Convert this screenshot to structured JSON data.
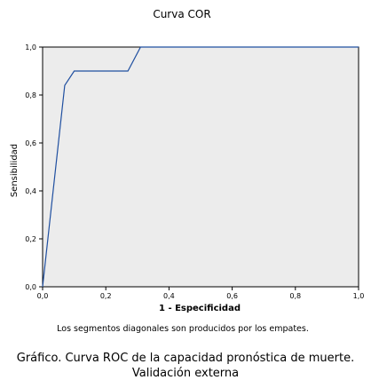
{
  "chart_data": {
    "type": "line",
    "title": "Curva COR",
    "xlabel": "1 - Especificidad",
    "ylabel": "Sensibilidad",
    "xlim": [
      0.0,
      1.0
    ],
    "ylim": [
      0.0,
      1.0
    ],
    "xticks": [
      0.0,
      0.2,
      0.4,
      0.6,
      0.8,
      1.0
    ],
    "yticks": [
      0.0,
      0.2,
      0.4,
      0.6,
      0.8,
      1.0
    ],
    "xtick_labels": [
      "0,0",
      "0,2",
      "0,4",
      "0,6",
      "0,8",
      "1,0"
    ],
    "ytick_labels": [
      "0,0",
      "0,2",
      "0,4",
      "0,6",
      "0,8",
      "1,0"
    ],
    "grid": false,
    "footnote": "Los segmentos diagonales son producidos por los empates.",
    "series": [
      {
        "color": "#1f4fa0",
        "x": [
          0.0,
          0.07,
          0.1,
          0.27,
          0.31,
          1.0
        ],
        "y": [
          0.0,
          0.84,
          0.9,
          0.9,
          1.0,
          1.0
        ]
      }
    ]
  },
  "caption": {
    "line1": "Gráfico.  Curva ROC de la capacidad pronóstica de muerte.",
    "line2": "Validación externa"
  },
  "colors": {
    "plot_background": "#ececec",
    "axis": "#000000",
    "line": "#1f4fa0"
  }
}
